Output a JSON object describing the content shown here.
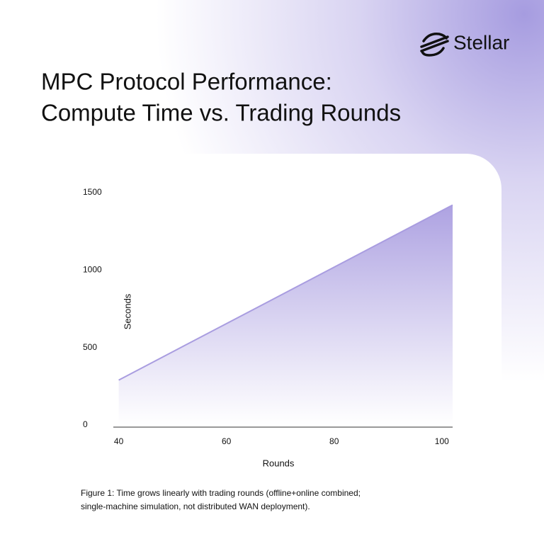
{
  "brand": "Stellar",
  "chart_data": {
    "type": "area",
    "title": [
      "MPC Protocol Performance:",
      "Compute Time vs. Trading Rounds"
    ],
    "x": [
      40,
      102
    ],
    "values": [
      290,
      1420
    ],
    "color": "#a99de0",
    "xlim": [
      39,
      102
    ],
    "xticks": [
      40,
      60,
      80,
      100
    ],
    "ylim": [
      0,
      1500
    ],
    "yticks": [
      0,
      500,
      1000,
      1500
    ],
    "xlabel": "Rounds",
    "ylabel": "Seconds",
    "caption": [
      "Figure 1: Time grows linearly with trading rounds (offline+online combined;",
      "single-machine simulation, not distributed WAN deployment)."
    ]
  }
}
